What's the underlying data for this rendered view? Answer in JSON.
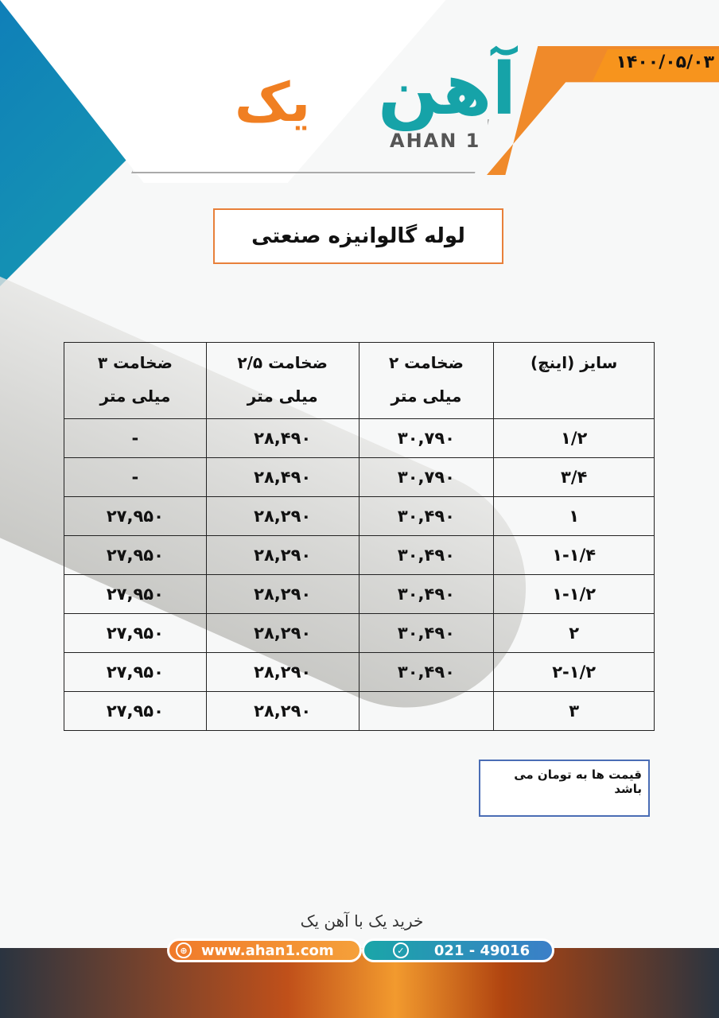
{
  "header": {
    "date": "۱۴۰۰/۰۵/۰۳",
    "logo_fa": "آهن یک",
    "logo_en": "AHAN 1"
  },
  "title": "لوله گالوانیزه صنعتی",
  "table": {
    "headers": [
      {
        "line1": "سایز (اینچ)",
        "line2": ""
      },
      {
        "line1": "ضخامت ۲",
        "line2": "میلی متر"
      },
      {
        "line1": "ضخامت ۲/۵",
        "line2": "میلی متر"
      },
      {
        "line1": "ضخامت ۳",
        "line2": "میلی متر"
      }
    ],
    "rows": [
      [
        "۱/۲",
        "۳۰,۷۹۰",
        "۲۸,۴۹۰",
        "-"
      ],
      [
        "۳/۴",
        "۳۰,۷۹۰",
        "۲۸,۴۹۰",
        "-"
      ],
      [
        "۱",
        "۳۰,۴۹۰",
        "۲۸,۲۹۰",
        "۲۷,۹۵۰"
      ],
      [
        "۱-۱/۴",
        "۳۰,۴۹۰",
        "۲۸,۲۹۰",
        "۲۷,۹۵۰"
      ],
      [
        "۱-۱/۲",
        "۳۰,۴۹۰",
        "۲۸,۲۹۰",
        "۲۷,۹۵۰"
      ],
      [
        "۲",
        "۳۰,۴۹۰",
        "۲۸,۲۹۰",
        "۲۷,۹۵۰"
      ],
      [
        "۲-۱/۲",
        "۳۰,۴۹۰",
        "۲۸,۲۹۰",
        "۲۷,۹۵۰"
      ],
      [
        "۳",
        "",
        "۲۸,۲۹۰",
        "۲۷,۹۵۰"
      ]
    ]
  },
  "note": "قیمت ها به تومان می باشد",
  "footer": {
    "slogan": "خرید یک با آهن یک",
    "website": "www.ahan1.com",
    "phone": "021 - 49016",
    "globe_icon": "globe-icon",
    "check_icon": "check-icon"
  }
}
